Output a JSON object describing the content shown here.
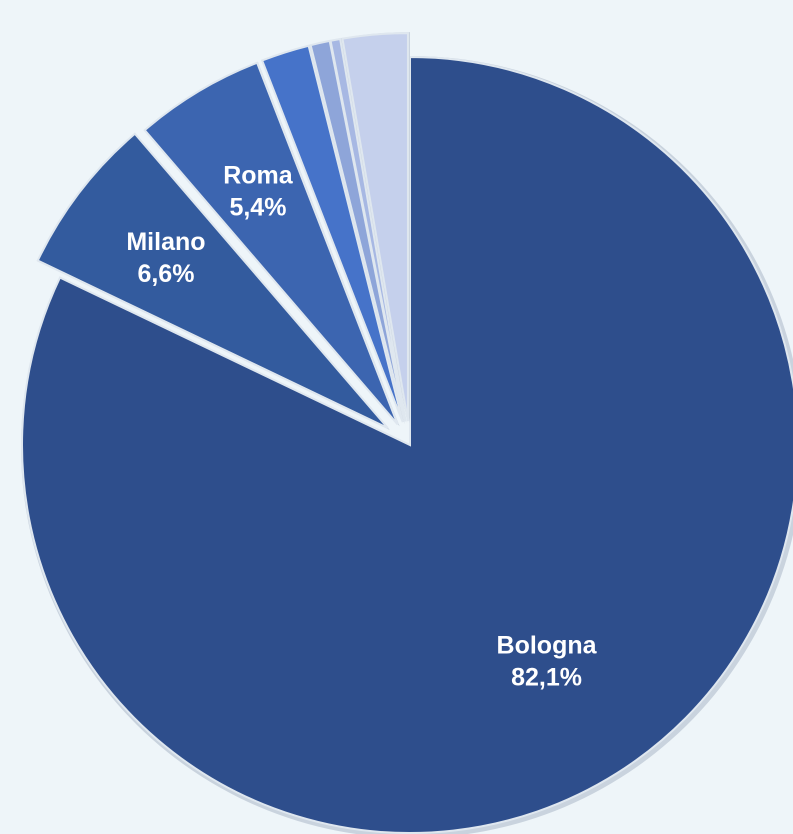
{
  "chart_data": {
    "type": "pie",
    "title": "",
    "slices": [
      {
        "label": "Bologna",
        "pct_label": "82,1%",
        "value": 82.1,
        "color": "#2e4e8c",
        "labeled": true
      },
      {
        "label": "Milano",
        "pct_label": "6,6%",
        "value": 6.6,
        "color": "#335b9e",
        "labeled": true
      },
      {
        "label": "Roma",
        "pct_label": "5,4%",
        "value": 5.4,
        "color": "#3c65b0",
        "labeled": true
      },
      {
        "label": "",
        "pct_label": "",
        "value": 2.0,
        "color": "#4673c9",
        "labeled": false
      },
      {
        "label": "",
        "pct_label": "",
        "value": 0.8,
        "color": "#8ea5d9",
        "labeled": false
      },
      {
        "label": "",
        "pct_label": "",
        "value": 0.4,
        "color": "#a7b8e3",
        "labeled": false
      },
      {
        "label": "",
        "pct_label": "",
        "value": 2.7,
        "color": "#c5d0ec",
        "labeled": false
      }
    ],
    "legend": "none"
  },
  "colors": {
    "background": "#eef5f9",
    "separator": "#c9d3de",
    "label_text": "#ffffff"
  }
}
